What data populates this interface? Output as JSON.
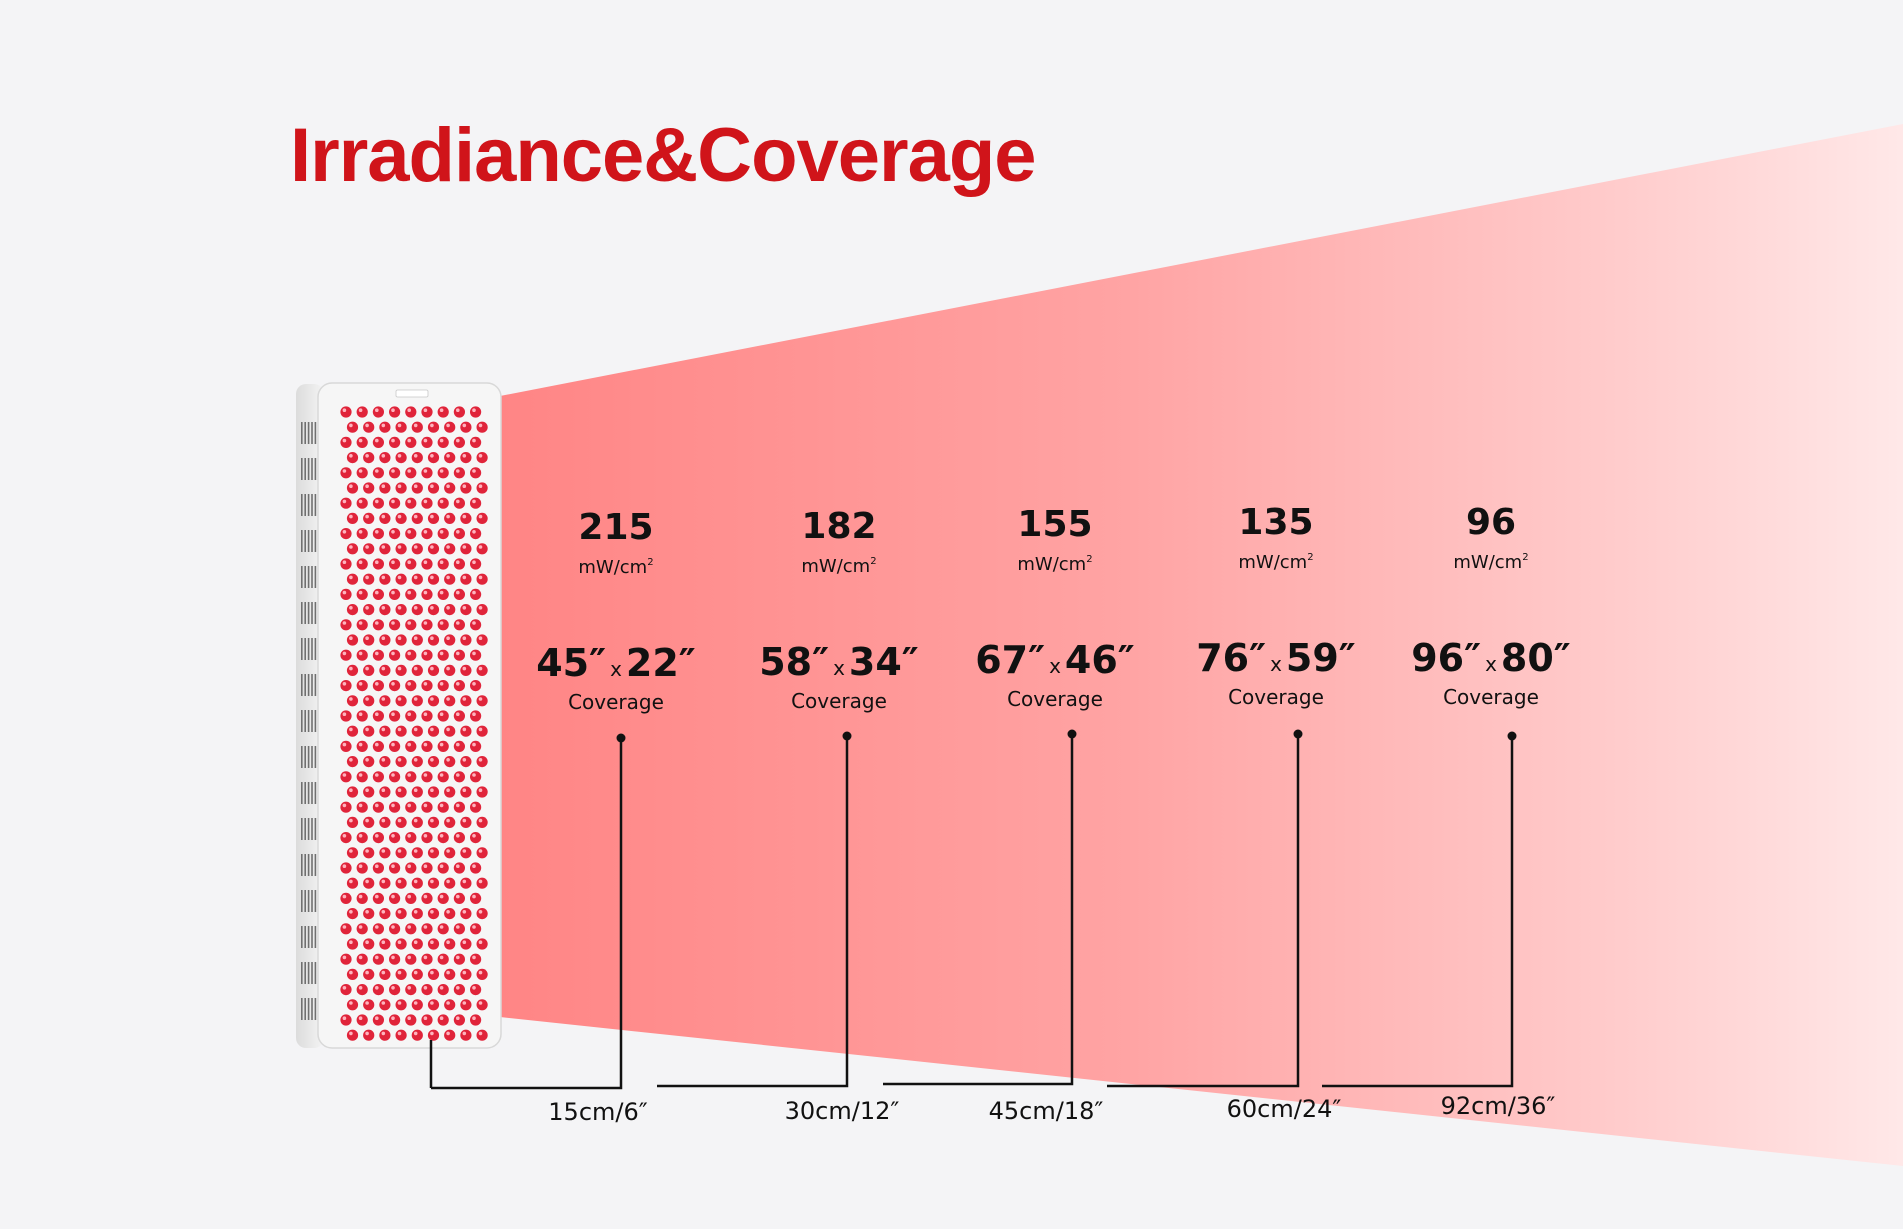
{
  "title": "Irradiance&Coverage",
  "colors": {
    "title": "#d0141a",
    "beam_start": "#ff8a8a",
    "beam_end": "#ffe6e6",
    "background": "#f4f4f6",
    "led": "#e0243a"
  },
  "irradiance_unit": "mW/cm",
  "irradiance_unit_sup": "2",
  "coverage_label": "Coverage",
  "coverage_separator": "x",
  "measurements": [
    {
      "irradiance": "215",
      "width": "45″",
      "height": "22″",
      "distance": "15cm/6″"
    },
    {
      "irradiance": "182",
      "width": "58″",
      "height": "34″",
      "distance": "30cm/12″"
    },
    {
      "irradiance": "155",
      "width": "67″",
      "height": "46″",
      "distance": "45cm/18″"
    },
    {
      "irradiance": "135",
      "width": "76″",
      "height": "59″",
      "distance": "60cm/24″"
    },
    {
      "irradiance": "96",
      "width": "96″",
      "height": "80″",
      "distance": "92cm/36″"
    }
  ]
}
